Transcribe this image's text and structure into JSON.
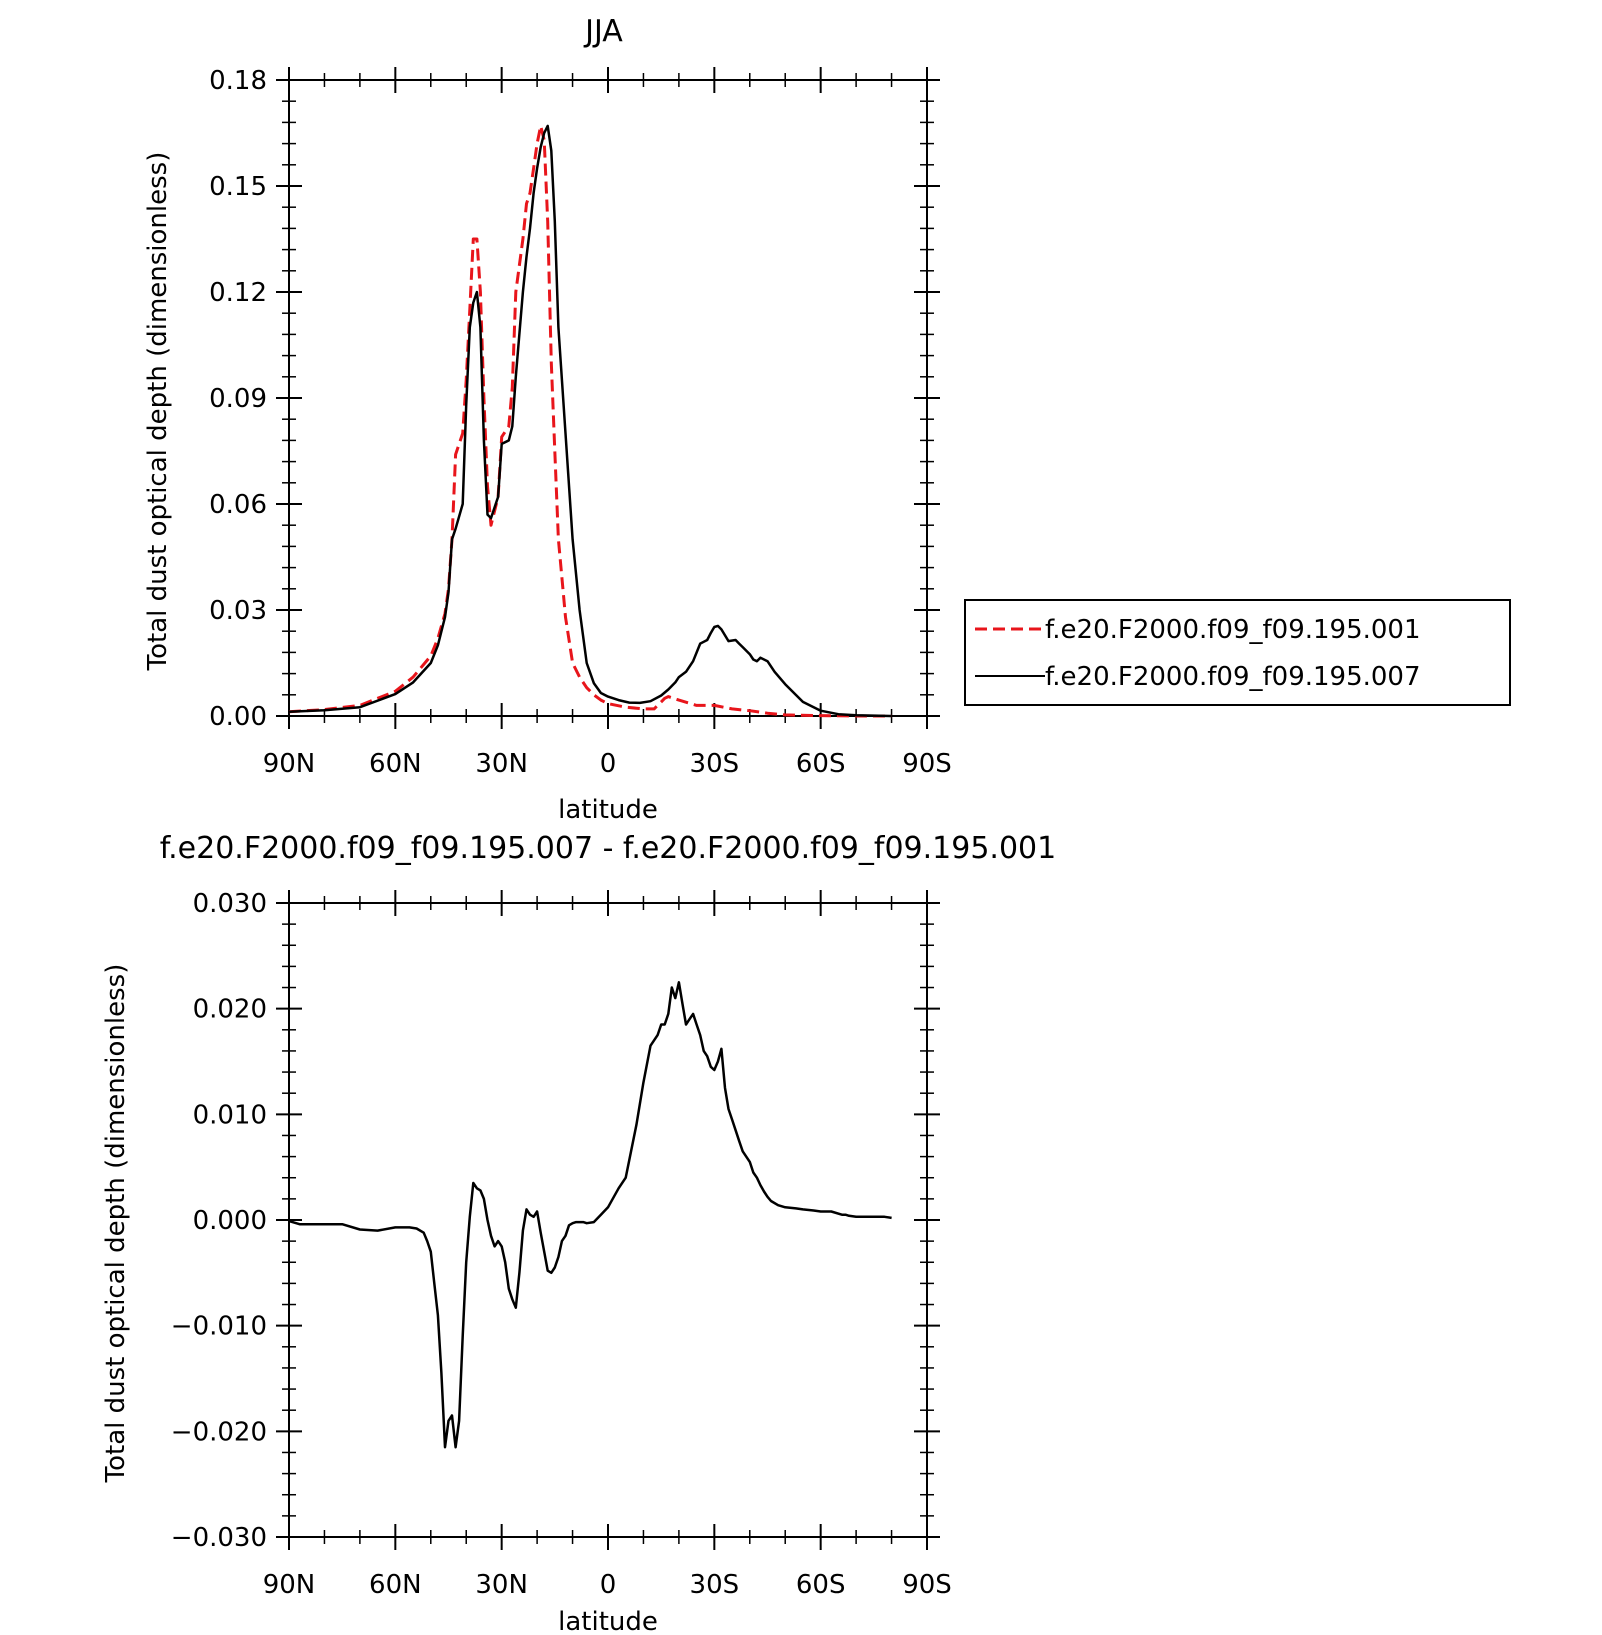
{
  "chart_data": [
    {
      "type": "line",
      "title": "JJA",
      "xlabel": "latitude",
      "ylabel": "Total dust optical depth (dimensionless)",
      "xlim": [
        90,
        -90
      ],
      "ylim": [
        0,
        0.18
      ],
      "yticks": [
        "0.00",
        "0.03",
        "0.06",
        "0.09",
        "0.12",
        "0.15",
        "0.18"
      ],
      "xticks": [
        {
          "value": 90,
          "label": "90N"
        },
        {
          "value": 60,
          "label": "60N"
        },
        {
          "value": 30,
          "label": "30N"
        },
        {
          "value": 0,
          "label": "0"
        },
        {
          "value": -30,
          "label": "30S"
        },
        {
          "value": -60,
          "label": "60S"
        },
        {
          "value": -90,
          "label": "90S"
        }
      ],
      "legend": {
        "placement": "right",
        "entries": [
          "f.e20.F2000.f09_f09.195.001",
          "f.e20.F2000.f09_f09.195.007"
        ]
      },
      "series": [
        {
          "name": "f.e20.F2000.f09_f09.195.001",
          "color": "#e8151b",
          "dash": true,
          "x": [
            90,
            80,
            70,
            60,
            55,
            50,
            48,
            46,
            45,
            44,
            43,
            41,
            40,
            39,
            38,
            37,
            36,
            35,
            34,
            33,
            31,
            30,
            28,
            27,
            26,
            24,
            23,
            22,
            21,
            20,
            19,
            18,
            17,
            16,
            15,
            14,
            12,
            10,
            8,
            6,
            4,
            2,
            0,
            -5,
            -10,
            -13,
            -15,
            -16,
            -17,
            -20,
            -25,
            -30,
            -35,
            -40,
            -45,
            -50,
            -60,
            -70,
            -80
          ],
          "y": [
            0.0012,
            0.0018,
            0.003,
            0.007,
            0.011,
            0.017,
            0.022,
            0.029,
            0.036,
            0.05,
            0.074,
            0.08,
            0.095,
            0.115,
            0.135,
            0.135,
            0.12,
            0.09,
            0.065,
            0.054,
            0.062,
            0.079,
            0.082,
            0.093,
            0.12,
            0.135,
            0.145,
            0.148,
            0.155,
            0.162,
            0.167,
            0.163,
            0.14,
            0.1,
            0.075,
            0.05,
            0.028,
            0.015,
            0.011,
            0.008,
            0.006,
            0.0045,
            0.0035,
            0.0025,
            0.002,
            0.002,
            0.004,
            0.005,
            0.0055,
            0.0045,
            0.003,
            0.003,
            0.002,
            0.0015,
            0.0008,
            0.0003,
            0.0001,
            0.0,
            0.0
          ]
        },
        {
          "name": "f.e20.F2000.f09_f09.195.007",
          "color": "#000000",
          "dash": false,
          "x": [
            90,
            80,
            70,
            60,
            55,
            50,
            48,
            46,
            45,
            44,
            43,
            41,
            40,
            39,
            38,
            37,
            36,
            35,
            34,
            33,
            31,
            30,
            28,
            27,
            26,
            24,
            23,
            22,
            21,
            20,
            19,
            18,
            17,
            16,
            15,
            14,
            12,
            10,
            8,
            6,
            4,
            2,
            0,
            -3,
            -6,
            -9,
            -12,
            -15,
            -17,
            -19,
            -20,
            -22,
            -24,
            -26,
            -27,
            -28,
            -29,
            -30,
            -31,
            -32,
            -34,
            -36,
            -37,
            -38,
            -40,
            -41,
            -42,
            -43,
            -45,
            -47,
            -50,
            -55,
            -60,
            -65,
            -70,
            -75,
            -80
          ],
          "y": [
            0.0012,
            0.0016,
            0.0025,
            0.0062,
            0.0095,
            0.015,
            0.02,
            0.028,
            0.035,
            0.05,
            0.053,
            0.06,
            0.088,
            0.11,
            0.117,
            0.12,
            0.11,
            0.078,
            0.057,
            0.056,
            0.062,
            0.077,
            0.078,
            0.082,
            0.096,
            0.12,
            0.13,
            0.138,
            0.148,
            0.155,
            0.161,
            0.165,
            0.167,
            0.16,
            0.14,
            0.11,
            0.08,
            0.05,
            0.03,
            0.015,
            0.0093,
            0.0065,
            0.0055,
            0.0045,
            0.0038,
            0.0037,
            0.0042,
            0.0058,
            0.0075,
            0.0095,
            0.011,
            0.0125,
            0.0155,
            0.0205,
            0.021,
            0.0215,
            0.0235,
            0.0252,
            0.0255,
            0.0245,
            0.0212,
            0.0215,
            0.0205,
            0.0195,
            0.0175,
            0.016,
            0.0155,
            0.0165,
            0.0155,
            0.0125,
            0.009,
            0.004,
            0.0015,
            0.0005,
            0.0002,
            0.0001,
            0.0
          ]
        }
      ]
    },
    {
      "type": "line",
      "title": "f.e20.F2000.f09_f09.195.007 - f.e20.F2000.f09_f09.195.001",
      "xlabel": "latitude",
      "ylabel": "Total dust optical depth (dimensionless)",
      "xlim": [
        90,
        -90
      ],
      "ylim": [
        -0.03,
        0.03
      ],
      "yticks": [
        "-0.030",
        "-0.020",
        "-0.010",
        "0.000",
        "0.010",
        "0.020",
        "0.030"
      ],
      "xticks": [
        {
          "value": 90,
          "label": "90N"
        },
        {
          "value": 60,
          "label": "60N"
        },
        {
          "value": 30,
          "label": "30N"
        },
        {
          "value": 0,
          "label": "0"
        },
        {
          "value": -30,
          "label": "30S"
        },
        {
          "value": -60,
          "label": "60S"
        },
        {
          "value": -90,
          "label": "90S"
        }
      ],
      "series": [
        {
          "color": "#000000",
          "dash": false,
          "x": [
            90,
            87,
            82,
            75,
            70,
            65,
            60,
            56,
            54,
            52,
            51,
            50,
            49,
            48,
            47,
            46,
            45,
            44,
            43,
            42,
            41,
            40,
            39,
            38,
            37,
            36,
            35,
            34,
            33,
            32,
            31,
            30,
            29,
            28,
            27,
            26,
            25,
            24,
            23,
            22,
            21,
            20,
            19,
            18,
            17,
            16,
            15,
            14,
            13,
            12,
            11,
            10,
            9,
            8,
            7,
            6,
            4,
            2,
            0,
            -3,
            -5,
            -8,
            -10,
            -12,
            -14,
            -15,
            -16,
            -17,
            -18,
            -19,
            -20,
            -21,
            -22,
            -23,
            -24,
            -25,
            -26,
            -27,
            -28,
            -29,
            -30,
            -31,
            -32,
            -33,
            -34,
            -35,
            -36,
            -37,
            -38,
            -40,
            -41,
            -42,
            -43,
            -44,
            -45,
            -46,
            -48,
            -50,
            -53,
            -55,
            -58,
            -60,
            -63,
            -66,
            -67,
            -68,
            -70,
            -72,
            -75,
            -78,
            -80
          ],
          "y": [
            -0.0001,
            -0.0004,
            -0.0004,
            -0.0004,
            -0.0009,
            -0.001,
            -0.0007,
            -0.0007,
            -0.0008,
            -0.0012,
            -0.002,
            -0.003,
            -0.006,
            -0.009,
            -0.0145,
            -0.0215,
            -0.019,
            -0.0185,
            -0.0215,
            -0.019,
            -0.011,
            -0.004,
            0.0003,
            0.0035,
            0.003,
            0.0028,
            0.002,
            0.0,
            -0.0015,
            -0.0025,
            -0.002,
            -0.0025,
            -0.004,
            -0.0065,
            -0.0075,
            -0.0083,
            -0.005,
            -0.001,
            0.001,
            0.0005,
            0.0003,
            0.0008,
            -0.0012,
            -0.003,
            -0.0048,
            -0.005,
            -0.0045,
            -0.0035,
            -0.002,
            -0.0015,
            -0.0005,
            -0.0003,
            -0.0002,
            -0.0002,
            -0.0002,
            -0.0003,
            -0.0002,
            0.0005,
            0.0012,
            0.003,
            0.004,
            0.009,
            0.013,
            0.0165,
            0.0175,
            0.0185,
            0.0185,
            0.0195,
            0.022,
            0.021,
            0.0225,
            0.0205,
            0.0185,
            0.019,
            0.0195,
            0.0185,
            0.0175,
            0.016,
            0.0155,
            0.0145,
            0.0142,
            0.015,
            0.0162,
            0.0125,
            0.0105,
            0.0095,
            0.0085,
            0.0075,
            0.0065,
            0.0055,
            0.0045,
            0.004,
            0.0033,
            0.0027,
            0.0022,
            0.0018,
            0.0014,
            0.0012,
            0.0011,
            0.001,
            0.0009,
            0.0008,
            0.0008,
            0.0005,
            0.0005,
            0.0004,
            0.0003,
            0.0003,
            0.0003,
            0.0003,
            0.0002
          ]
        }
      ]
    }
  ]
}
